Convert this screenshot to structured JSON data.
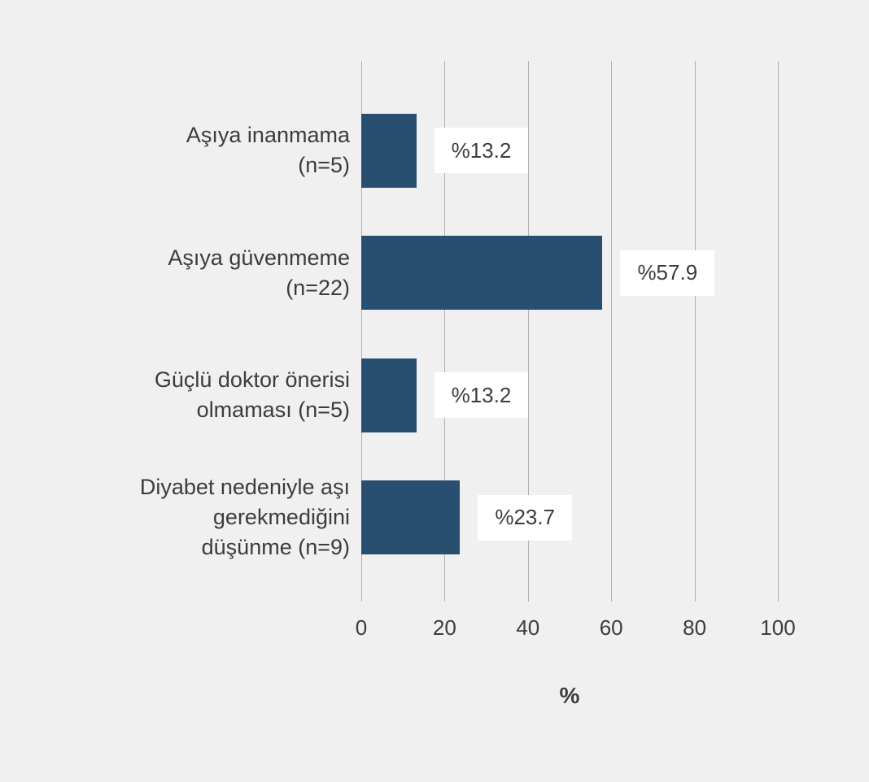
{
  "chart_data": {
    "type": "bar",
    "orientation": "horizontal",
    "title": "",
    "xlabel": "%",
    "ylabel": "",
    "xlim": [
      0,
      100
    ],
    "x_ticks": [
      0,
      20,
      40,
      60,
      80,
      100
    ],
    "grid": "vertical-only",
    "legend": "none",
    "value_label_prefix": "%",
    "categories": [
      "Aşıya inanmama (n=5)",
      "Aşıya güvenmeme (n=22)",
      "Güçlü doktor önerisi olmaması (n=5)",
      "Diyabet nedeniyle aşı gerekmediğini düşünme (n=9)"
    ],
    "values": [
      13.2,
      57.9,
      13.2,
      23.7
    ],
    "rows": [
      {
        "label": "Aşıya inanmama (n=5)",
        "label_lines": [
          "Aşıya inanmama",
          "(n=5)"
        ],
        "n": 5,
        "value": 13.2,
        "value_label": "%13.2"
      },
      {
        "label": "Aşıya güvenmeme (n=22)",
        "label_lines": [
          "Aşıya güvenmeme",
          "(n=22)"
        ],
        "n": 22,
        "value": 57.9,
        "value_label": "%57.9"
      },
      {
        "label": "Güçlü doktor önerisi olmaması (n=5)",
        "label_lines": [
          "Güçlü doktor önerisi",
          "olmaması (n=5)"
        ],
        "n": 5,
        "value": 13.2,
        "value_label": "%13.2"
      },
      {
        "label": "Diyabet nedeniyle aşı gerekmediğini düşünme (n=9)",
        "label_lines": [
          "Diyabet nedeniyle aşı",
          "gerekmediğini",
          "düşünme (n=9)"
        ],
        "n": 9,
        "value": 23.7,
        "value_label": "%23.7"
      }
    ],
    "colors": {
      "background": "#F0F0F0",
      "bar": "#284E70",
      "gridline": "#B0B0B0",
      "text": "#3C3C3C",
      "value_label_background": "#FFFFFF"
    }
  }
}
